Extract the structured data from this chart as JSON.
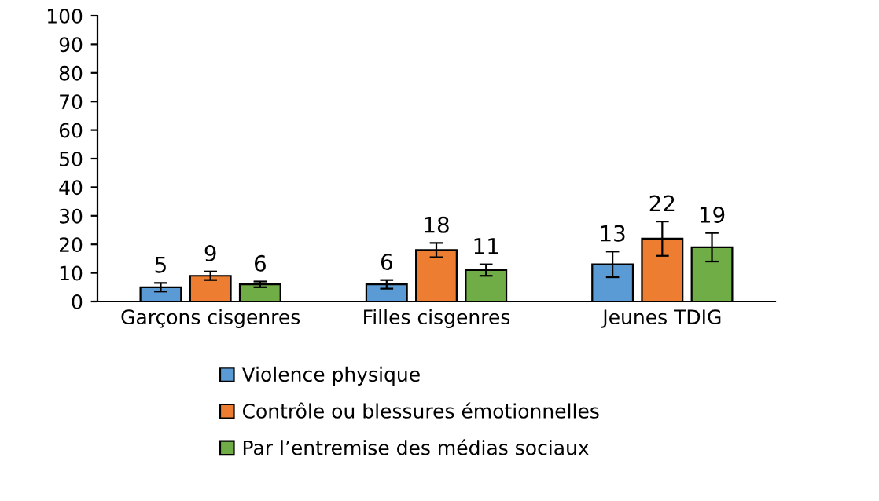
{
  "chart_data": {
    "type": "bar",
    "categories": [
      "Garçons cisgenres",
      "Filles cisgenres",
      "Jeunes TDIG"
    ],
    "series": [
      {
        "name": "Violence physique",
        "color": "#5b9bd5",
        "values": [
          5,
          6,
          13
        ],
        "errors": [
          1.5,
          1.5,
          4.5
        ]
      },
      {
        "name": "Contrôle ou blessures émotionnelles",
        "color": "#ed7d31",
        "values": [
          9,
          18,
          22
        ],
        "errors": [
          1.5,
          2.5,
          6
        ]
      },
      {
        "name": "Par l’entremise des médias sociaux",
        "color": "#70ad47",
        "values": [
          6,
          11,
          19
        ],
        "errors": [
          1,
          2,
          5
        ]
      }
    ],
    "ylim": [
      0,
      100
    ],
    "yticks": [
      0,
      10,
      20,
      30,
      40,
      50,
      60,
      70,
      80,
      90,
      100
    ],
    "data_labels": true,
    "grid": false,
    "legend": "bottom"
  }
}
